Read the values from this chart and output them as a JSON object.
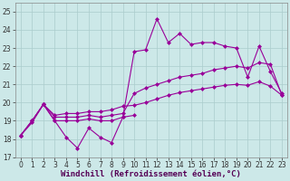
{
  "xlabel": "Windchill (Refroidissement éolien,°C)",
  "bg_color": "#cce8e8",
  "grid_color": "#aacccc",
  "line_color": "#990099",
  "ylim": [
    17,
    25.5
  ],
  "xlim": [
    -0.5,
    23.5
  ],
  "yticks": [
    17,
    18,
    19,
    20,
    21,
    22,
    23,
    24,
    25
  ],
  "xticks": [
    0,
    1,
    2,
    3,
    4,
    5,
    6,
    7,
    8,
    9,
    10,
    11,
    12,
    13,
    14,
    15,
    16,
    17,
    18,
    19,
    20,
    21,
    22,
    23
  ],
  "line1_x": [
    0,
    1,
    2,
    3,
    4,
    5,
    6,
    7,
    8,
    9,
    10
  ],
  "line1_y": [
    18.2,
    18.9,
    19.9,
    19.0,
    18.1,
    17.5,
    18.6,
    18.1,
    17.8,
    19.2,
    19.3
  ],
  "line2_x": [
    0,
    1,
    2,
    3,
    4,
    5,
    6,
    7,
    8,
    9,
    10,
    11,
    12,
    13,
    14,
    15,
    16,
    17,
    18,
    19,
    20,
    21,
    22,
    23
  ],
  "line2_y": [
    18.2,
    19.0,
    19.9,
    19.0,
    19.0,
    19.0,
    19.1,
    19.0,
    19.0,
    19.2,
    22.8,
    22.9,
    24.6,
    23.3,
    23.8,
    23.2,
    23.3,
    23.3,
    23.1,
    23.0,
    21.4,
    23.1,
    21.7,
    20.5
  ],
  "line3_x": [
    0,
    1,
    2,
    3,
    4,
    5,
    6,
    7,
    8,
    9,
    10,
    11,
    12,
    13,
    14,
    15,
    16,
    17,
    18,
    19,
    20,
    21,
    22,
    23
  ],
  "line3_y": [
    18.2,
    19.0,
    19.9,
    19.2,
    19.2,
    19.2,
    19.3,
    19.2,
    19.3,
    19.4,
    20.5,
    20.8,
    21.0,
    21.2,
    21.4,
    21.5,
    21.6,
    21.8,
    21.9,
    22.0,
    21.9,
    22.2,
    22.1,
    20.4
  ],
  "line4_x": [
    0,
    1,
    2,
    3,
    4,
    5,
    6,
    7,
    8,
    9,
    10,
    11,
    12,
    13,
    14,
    15,
    16,
    17,
    18,
    19,
    20,
    21,
    22,
    23
  ],
  "line4_y": [
    18.2,
    19.0,
    19.9,
    19.3,
    19.4,
    19.4,
    19.5,
    19.5,
    19.6,
    19.8,
    19.85,
    20.0,
    20.2,
    20.4,
    20.55,
    20.65,
    20.75,
    20.85,
    20.95,
    21.0,
    20.95,
    21.15,
    20.9,
    20.4
  ],
  "marker": "D",
  "markersize": 2.0,
  "linewidth": 0.8,
  "tick_fontsize": 5.5,
  "xlabel_fontsize": 6.5
}
